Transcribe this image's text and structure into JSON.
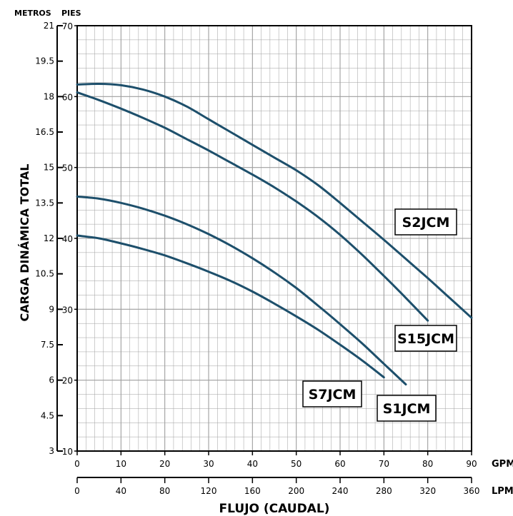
{
  "chart_data": {
    "type": "line",
    "title": "",
    "xlabel": "FLUJO (CAUDAL)",
    "ylabel": "CARGA DINÁMICA TOTAL",
    "x_unit_primary": "GPM",
    "x_unit_secondary": "LPM",
    "y_unit_left": "METROS",
    "y_unit_right": "PIES",
    "xlim": [
      0,
      90
    ],
    "ylim": [
      10,
      70
    ],
    "x_ticks_gpm": [
      "0",
      "10",
      "20",
      "30",
      "40",
      "50",
      "60",
      "70",
      "80",
      "90"
    ],
    "x_ticks_lpm": [
      "0",
      "40",
      "80",
      "120",
      "160",
      "200",
      "240",
      "280",
      "320",
      "360"
    ],
    "y_ticks_pies": [
      "10",
      "20",
      "30",
      "40",
      "50",
      "60",
      "70"
    ],
    "y_ticks_metros": [
      "3",
      "4.5",
      "6",
      "7.5",
      "9",
      "10.5",
      "12",
      "13.5",
      "15",
      "16.5",
      "18",
      "19.5",
      "21"
    ],
    "grid": true,
    "series": [
      {
        "name": "S2JCM",
        "x": [
          0,
          5,
          10,
          15,
          20,
          25,
          30,
          35,
          40,
          45,
          50,
          55,
          60,
          65,
          70,
          75,
          80,
          85,
          90
        ],
        "y": [
          61.7,
          61.8,
          61.6,
          61.0,
          60.0,
          58.6,
          56.8,
          55.0,
          53.2,
          51.4,
          49.6,
          47.5,
          45.0,
          42.4,
          39.8,
          37.1,
          34.4,
          31.6,
          28.8
        ]
      },
      {
        "name": "S15JCM",
        "x": [
          0,
          5,
          10,
          15,
          20,
          25,
          30,
          35,
          40,
          45,
          50,
          55,
          60,
          65,
          70,
          75,
          80
        ],
        "y": [
          60.6,
          59.5,
          58.3,
          57.0,
          55.6,
          54.0,
          52.4,
          50.7,
          49.0,
          47.2,
          45.2,
          43.0,
          40.5,
          37.7,
          34.7,
          31.6,
          28.4
        ]
      },
      {
        "name": "S1JCM",
        "x": [
          0,
          5,
          10,
          15,
          20,
          25,
          30,
          35,
          40,
          45,
          50,
          55,
          60,
          65,
          70,
          75
        ],
        "y": [
          45.9,
          45.6,
          45.0,
          44.2,
          43.2,
          42.0,
          40.6,
          39.0,
          37.2,
          35.2,
          33.0,
          30.5,
          27.9,
          25.2,
          22.3,
          19.4
        ]
      },
      {
        "name": "S7JCM",
        "x": [
          0,
          5,
          10,
          15,
          20,
          25,
          30,
          35,
          40,
          45,
          50,
          55,
          60,
          65,
          70
        ],
        "y": [
          40.4,
          40.0,
          39.3,
          38.5,
          37.6,
          36.5,
          35.3,
          34.0,
          32.5,
          30.8,
          29.0,
          27.1,
          25.0,
          22.8,
          20.4
        ]
      }
    ],
    "series_labels": [
      "S2JCM",
      "S15JCM",
      "S1JCM",
      "S7JCM"
    ],
    "line_color": "#1d4f6b",
    "grid_color": "#9e9e9e"
  }
}
